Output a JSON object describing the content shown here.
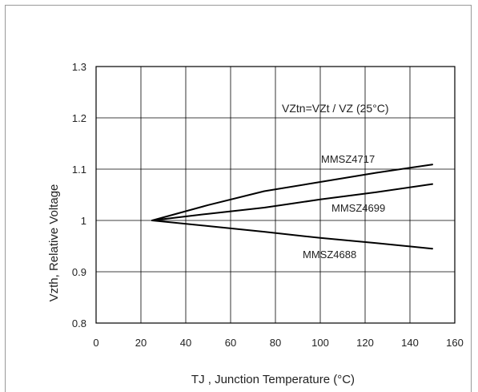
{
  "chart_data": {
    "type": "line",
    "title": "",
    "annotation": "VZtn=VZt / VZ (25°C)",
    "xlabel": "TJ , Junction Temperature (°C)",
    "ylabel": "Vzth, Relative Voltage",
    "xlim": [
      0,
      160
    ],
    "ylim": [
      0.8,
      1.3
    ],
    "xticks": [
      0,
      20,
      40,
      60,
      80,
      100,
      120,
      140,
      160
    ],
    "yticks": [
      0.8,
      0.9,
      1,
      1.1,
      1.2,
      1.3
    ],
    "xtick_labels": [
      "0",
      "20",
      "40",
      "60",
      "80",
      "100",
      "120",
      "140",
      "160"
    ],
    "ytick_labels": [
      "0.8",
      "0.9",
      "1",
      "1.1",
      "1.2",
      "1.3"
    ],
    "grid": true,
    "legend": "none",
    "series": [
      {
        "name": "MMSZ4717",
        "color": "#000000",
        "x": [
          25,
          50,
          75,
          100,
          125,
          150
        ],
        "y": [
          1.0,
          1.03,
          1.057,
          1.075,
          1.093,
          1.109
        ]
      },
      {
        "name": "MMSZ4699",
        "color": "#000000",
        "x": [
          25,
          50,
          75,
          100,
          125,
          150
        ],
        "y": [
          1.0,
          1.013,
          1.025,
          1.041,
          1.055,
          1.071
        ]
      },
      {
        "name": "MMSZ4688",
        "color": "#000000",
        "x": [
          25,
          50,
          75,
          100,
          125,
          150
        ],
        "y": [
          1.0,
          0.989,
          0.978,
          0.966,
          0.956,
          0.945
        ]
      }
    ]
  }
}
